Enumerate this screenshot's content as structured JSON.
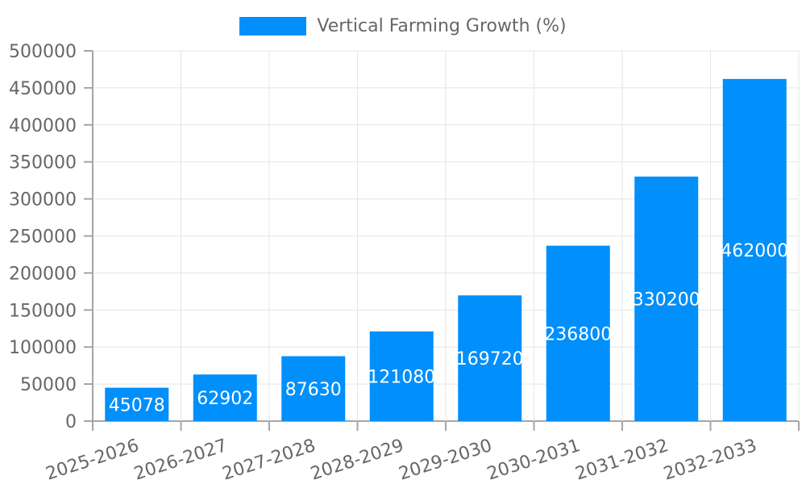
{
  "chart_data": {
    "type": "bar",
    "title": "Vertical Farming Growth (%)",
    "legend": {
      "label": "Vertical Farming Growth (%)",
      "position": "top"
    },
    "categories": [
      "2025-2026",
      "2026-2027",
      "2027-2028",
      "2028-2029",
      "2029-2030",
      "2030-2031",
      "2031-2032",
      "2032-2033"
    ],
    "series": [
      {
        "name": "Vertical Farming Growth (%)",
        "values": [
          45078,
          62902,
          87630,
          121080,
          169720,
          236800,
          330200,
          462000
        ]
      }
    ],
    "data_labels": [
      "45078",
      "62902",
      "87630",
      "121080",
      "169720",
      "236800",
      "330200",
      "462000"
    ],
    "xlabel": "",
    "ylabel": "",
    "ylim": [
      0,
      500000
    ],
    "ytick_step": 50000,
    "y_tick_labels": [
      "0",
      "50000",
      "100000",
      "150000",
      "200000",
      "250000",
      "300000",
      "350000",
      "400000",
      "450000",
      "500000"
    ],
    "grid": true,
    "x_label_rotation_deg": -18,
    "colors": {
      "bar": "#008FFB",
      "data_label_text": "#ffffff",
      "axis_text": "#666666",
      "grid_line": "#e5e5e5",
      "axis_line": "#a5a5a5",
      "background": "#ffffff"
    }
  }
}
